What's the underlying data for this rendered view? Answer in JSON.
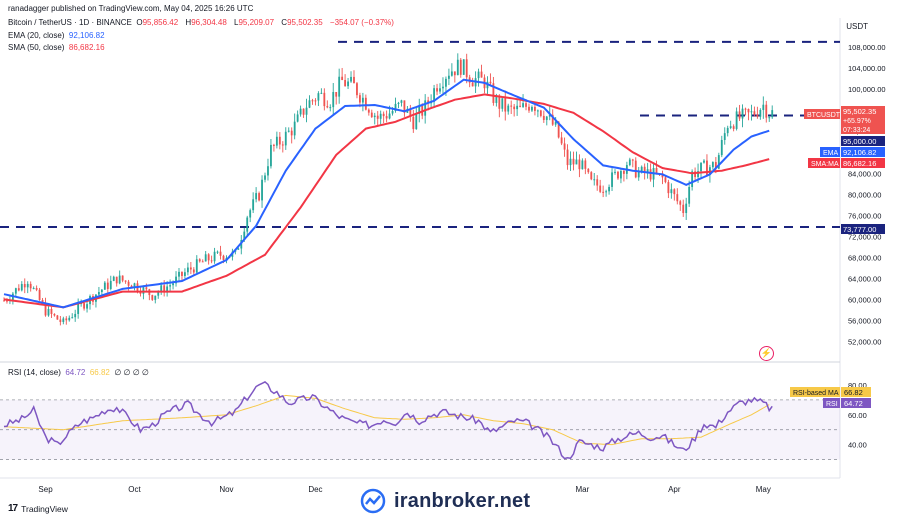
{
  "header": {
    "published": "ranadagger published on TradingView.com, May 04, 2025 16:26 UTC",
    "symbol": "Bitcoin / TetherUS · 1D · BINANCE",
    "ohlc": [
      {
        "label": "O",
        "value": "95,856.42"
      },
      {
        "label": "H",
        "value": "96,304.48"
      },
      {
        "label": "L",
        "value": "95,209.07"
      },
      {
        "label": "C",
        "value": "95,502.35"
      }
    ],
    "change": "−354.07 (−0.37%)",
    "ema_label": "EMA (20, close)",
    "ema_value": "92,106.82",
    "sma_label": "SMA (50, close)",
    "sma_value": "86,682.16",
    "currency": "USDT"
  },
  "rsi_header": {
    "label": "RSI (14, close)",
    "rsi_value": "64.72",
    "ma_value": "66.82",
    "zeros": "∅ ∅ ∅ ∅"
  },
  "badges": {
    "price_symbol": "BTCUSDT",
    "price_value": "95,502.35",
    "price_change": "+65.97%",
    "price_timer": "07:33:24",
    "level_95": "95,000.00",
    "ema_tag": "EMA",
    "ema_value": "92,106.82",
    "sma_tag": "SMA:MA",
    "sma_value": "86,682.16",
    "level_73": "73,777.00",
    "rsi_ma_tag": "RSI-based MA",
    "rsi_ma_value": "66.82",
    "rsi_tag": "RSI",
    "rsi_value": "64.72"
  },
  "colors": {
    "up": "#26a69a",
    "down": "#ef5350",
    "ema": "#2962ff",
    "sma": "#f23645",
    "rsi": "#7e57c2",
    "rsi_ma": "#f7c948",
    "level": "#1a237e"
  },
  "footer": {
    "brand": "TradingView",
    "watermark": "iranbroker.net"
  },
  "chart_data": {
    "type": "candlestick",
    "title": "Bitcoin / TetherUS · 1D · BINANCE",
    "price_axis": {
      "ticks": [
        52000,
        56000,
        60000,
        64000,
        68000,
        72000,
        76000,
        80000,
        84000,
        88000,
        92000,
        96000,
        100000,
        104000,
        108000
      ],
      "tick_labels": [
        "52,000.00",
        "56,000.00",
        "60,000.00",
        "64,000.00",
        "68,000.00",
        "72,000.00",
        "76,000.00",
        "80,000.00",
        "84,000.00",
        "88,000.00",
        "92,000.00",
        "96,000.00",
        "100,000.00",
        "104,000.00",
        "108,000.00"
      ],
      "range": [
        50000,
        110500
      ]
    },
    "time_axis": {
      "labels": [
        {
          "text": "Sep",
          "day": 14
        },
        {
          "text": "Oct",
          "day": 44
        },
        {
          "text": "Nov",
          "day": 75
        },
        {
          "text": "Dec",
          "day": 105
        },
        {
          "text": "Mar",
          "day": 195
        },
        {
          "text": "Apr",
          "day": 226
        },
        {
          "text": "May",
          "day": 256
        }
      ],
      "days": 265
    },
    "horizontal_levels": [
      {
        "price": 109000,
        "label": ""
      },
      {
        "price": 95000,
        "label": "95,000.00"
      },
      {
        "price": 73777,
        "label": "73,777.00"
      }
    ],
    "close_anchors": [
      [
        0,
        59800
      ],
      [
        8,
        63800
      ],
      [
        14,
        57800
      ],
      [
        20,
        55500
      ],
      [
        26,
        58800
      ],
      [
        32,
        61500
      ],
      [
        38,
        64000
      ],
      [
        44,
        62800
      ],
      [
        50,
        60800
      ],
      [
        56,
        62800
      ],
      [
        62,
        65500
      ],
      [
        68,
        67500
      ],
      [
        73,
        68500
      ],
      [
        78,
        68500
      ],
      [
        82,
        76000
      ],
      [
        86,
        80000
      ],
      [
        90,
        88500
      ],
      [
        94,
        90500
      ],
      [
        98,
        93000
      ],
      [
        102,
        97000
      ],
      [
        106,
        99000
      ],
      [
        110,
        98000
      ],
      [
        114,
        101500
      ],
      [
        118,
        100500
      ],
      [
        122,
        97500
      ],
      [
        126,
        94500
      ],
      [
        130,
        95500
      ],
      [
        134,
        97000
      ],
      [
        138,
        94000
      ],
      [
        142,
        96500
      ],
      [
        146,
        101000
      ],
      [
        150,
        103500
      ],
      [
        154,
        104500
      ],
      [
        158,
        102000
      ],
      [
        162,
        101500
      ],
      [
        166,
        97500
      ],
      [
        170,
        96000
      ],
      [
        174,
        96000
      ],
      [
        178,
        97500
      ],
      [
        182,
        95500
      ],
      [
        186,
        92500
      ],
      [
        190,
        86000
      ],
      [
        194,
        86000
      ],
      [
        198,
        82000
      ],
      [
        202,
        81500
      ],
      [
        206,
        83500
      ],
      [
        210,
        86000
      ],
      [
        214,
        84000
      ],
      [
        218,
        84000
      ],
      [
        222,
        83000
      ],
      [
        226,
        79500
      ],
      [
        229,
        77000
      ],
      [
        232,
        84000
      ],
      [
        236,
        85000
      ],
      [
        240,
        85500
      ],
      [
        244,
        93500
      ],
      [
        248,
        94500
      ],
      [
        252,
        95200
      ],
      [
        256,
        97000
      ],
      [
        258,
        95500
      ]
    ],
    "ema20_anchors": [
      [
        0,
        61000
      ],
      [
        20,
        58500
      ],
      [
        40,
        62000
      ],
      [
        60,
        63500
      ],
      [
        75,
        67500
      ],
      [
        85,
        74000
      ],
      [
        95,
        84500
      ],
      [
        105,
        92500
      ],
      [
        115,
        96800
      ],
      [
        125,
        97000
      ],
      [
        135,
        95800
      ],
      [
        145,
        97800
      ],
      [
        155,
        101800
      ],
      [
        162,
        101200
      ],
      [
        172,
        98800
      ],
      [
        182,
        96500
      ],
      [
        192,
        90500
      ],
      [
        202,
        85500
      ],
      [
        212,
        84500
      ],
      [
        222,
        83800
      ],
      [
        230,
        81800
      ],
      [
        238,
        83800
      ],
      [
        246,
        88500
      ],
      [
        252,
        91000
      ],
      [
        258,
        92100
      ]
    ],
    "sma50_anchors": [
      [
        0,
        60000
      ],
      [
        20,
        58500
      ],
      [
        40,
        61500
      ],
      [
        60,
        61500
      ],
      [
        75,
        64500
      ],
      [
        88,
        68500
      ],
      [
        100,
        77500
      ],
      [
        112,
        87500
      ],
      [
        122,
        92500
      ],
      [
        132,
        93800
      ],
      [
        142,
        96000
      ],
      [
        152,
        98000
      ],
      [
        162,
        99000
      ],
      [
        172,
        98200
      ],
      [
        182,
        97200
      ],
      [
        192,
        95500
      ],
      [
        202,
        92000
      ],
      [
        212,
        88000
      ],
      [
        222,
        85000
      ],
      [
        232,
        84000
      ],
      [
        242,
        84500
      ],
      [
        250,
        85500
      ],
      [
        258,
        86700
      ]
    ],
    "rsi": {
      "label": "RSI (14, close)",
      "axis_ticks": [
        40,
        60,
        80
      ],
      "levels": [
        70,
        50,
        30
      ],
      "range": [
        23,
        90
      ],
      "anchors": [
        [
          0,
          53
        ],
        [
          6,
          57
        ],
        [
          10,
          63
        ],
        [
          14,
          45
        ],
        [
          18,
          40
        ],
        [
          22,
          48
        ],
        [
          26,
          55
        ],
        [
          30,
          58
        ],
        [
          34,
          63
        ],
        [
          38,
          65
        ],
        [
          42,
          58
        ],
        [
          46,
          50
        ],
        [
          50,
          53
        ],
        [
          54,
          60
        ],
        [
          58,
          64
        ],
        [
          62,
          67
        ],
        [
          66,
          60
        ],
        [
          70,
          55
        ],
        [
          74,
          58
        ],
        [
          78,
          62
        ],
        [
          82,
          72
        ],
        [
          86,
          80
        ],
        [
          88,
          80
        ],
        [
          92,
          75
        ],
        [
          96,
          68
        ],
        [
          100,
          70
        ],
        [
          104,
          72
        ],
        [
          108,
          66
        ],
        [
          112,
          60
        ],
        [
          116,
          56
        ],
        [
          120,
          54
        ],
        [
          124,
          53
        ],
        [
          128,
          57
        ],
        [
          132,
          55
        ],
        [
          136,
          62
        ],
        [
          140,
          56
        ],
        [
          144,
          60
        ],
        [
          148,
          62
        ],
        [
          152,
          60
        ],
        [
          156,
          58
        ],
        [
          160,
          56
        ],
        [
          164,
          48
        ],
        [
          168,
          52
        ],
        [
          172,
          56
        ],
        [
          176,
          55
        ],
        [
          180,
          50
        ],
        [
          184,
          44
        ],
        [
          188,
          35
        ],
        [
          190,
          30
        ],
        [
          194,
          42
        ],
        [
          198,
          40
        ],
        [
          202,
          38
        ],
        [
          206,
          43
        ],
        [
          210,
          46
        ],
        [
          214,
          48
        ],
        [
          218,
          45
        ],
        [
          222,
          46
        ],
        [
          226,
          40
        ],
        [
          229,
          36
        ],
        [
          232,
          42
        ],
        [
          236,
          54
        ],
        [
          240,
          52
        ],
        [
          244,
          62
        ],
        [
          248,
          68
        ],
        [
          252,
          70
        ],
        [
          256,
          68
        ],
        [
          258,
          64.72
        ]
      ],
      "ma_anchors": [
        [
          0,
          52
        ],
        [
          20,
          50
        ],
        [
          40,
          56
        ],
        [
          60,
          58
        ],
        [
          75,
          60
        ],
        [
          85,
          66
        ],
        [
          95,
          73
        ],
        [
          105,
          71
        ],
        [
          115,
          64
        ],
        [
          125,
          58
        ],
        [
          135,
          57
        ],
        [
          145,
          58
        ],
        [
          155,
          60
        ],
        [
          165,
          56
        ],
        [
          175,
          54
        ],
        [
          185,
          50
        ],
        [
          195,
          41
        ],
        [
          205,
          40
        ],
        [
          215,
          44
        ],
        [
          225,
          44
        ],
        [
          235,
          45
        ],
        [
          245,
          54
        ],
        [
          252,
          60
        ],
        [
          258,
          66.82
        ]
      ]
    }
  }
}
